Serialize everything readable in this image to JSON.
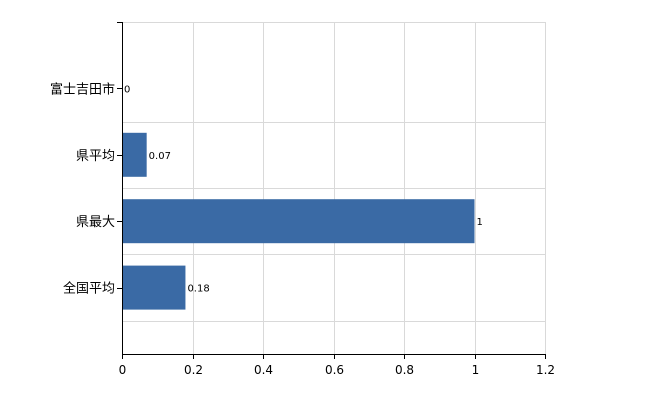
{
  "chart_data": {
    "type": "bar",
    "orientation": "horizontal",
    "categories": [
      "富士吉田市",
      "県平均",
      "県最大",
      "全国平均"
    ],
    "values": [
      0,
      0.07,
      1,
      0.18
    ],
    "data_labels": [
      "0",
      "0.07",
      "1",
      "0.18"
    ],
    "xlim": [
      0,
      1.2
    ],
    "xticks": [
      0,
      0.2,
      0.4,
      0.6,
      0.8,
      1,
      1.2
    ],
    "xtick_labels": [
      "0",
      "0.2",
      "0.4",
      "0.6",
      "0.8",
      "1",
      "1.2"
    ],
    "bar_color": "#3a6aa5",
    "grid": true,
    "legend": "none"
  }
}
